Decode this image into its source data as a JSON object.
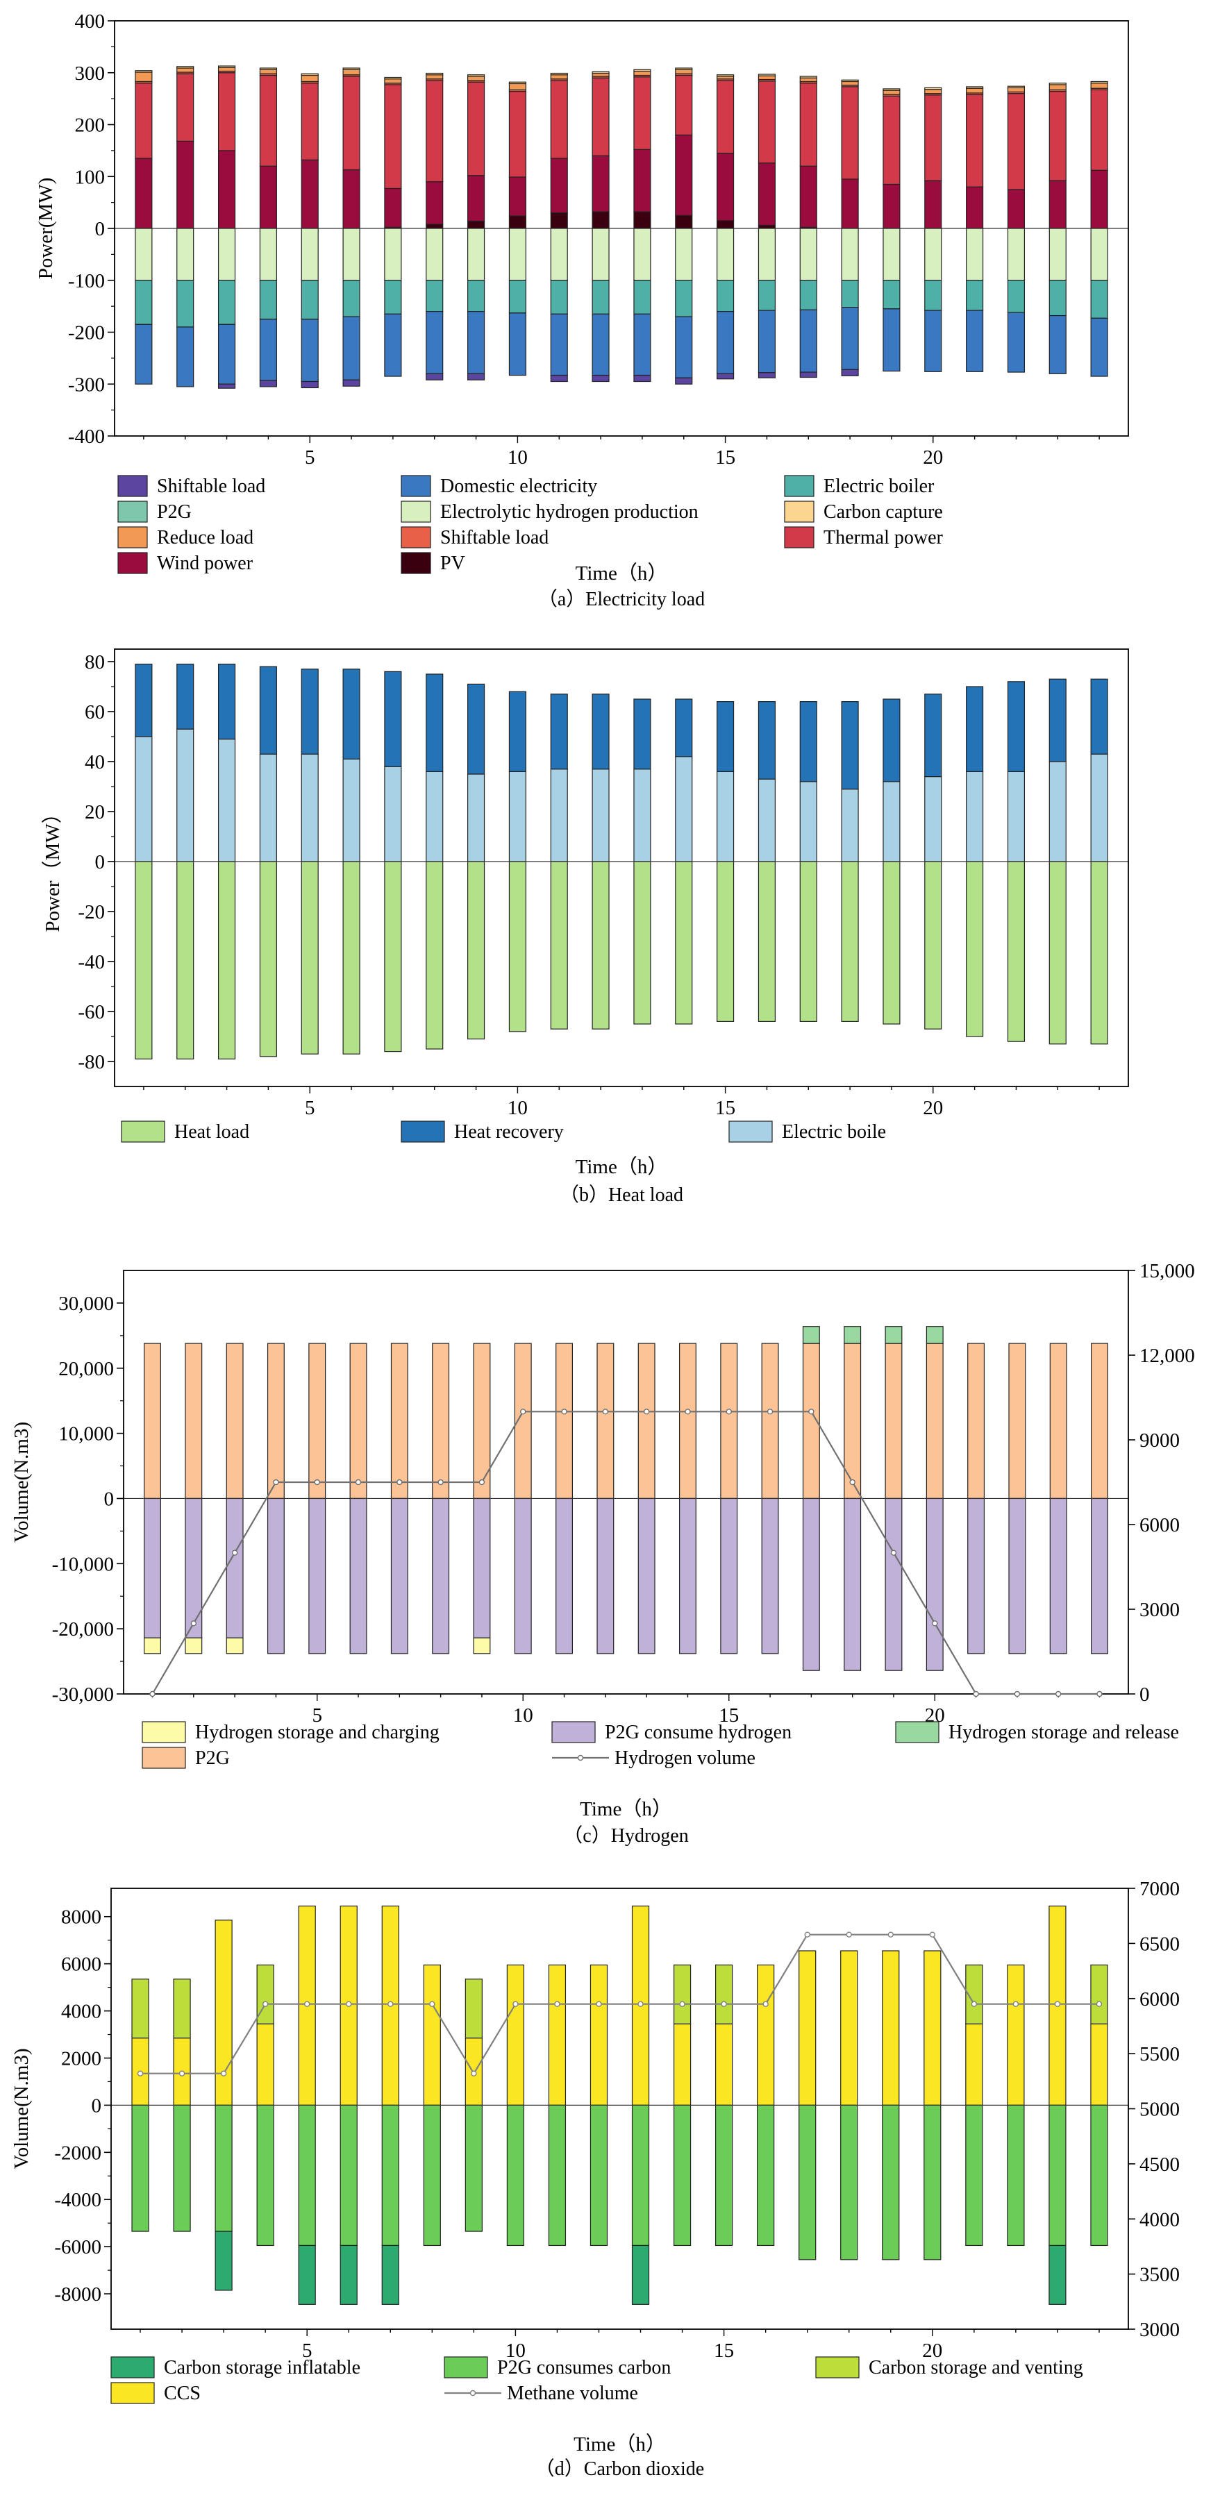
{
  "colors": {
    "shiftable_load": "#5b45a0",
    "domestic": "#3a78c2",
    "electric_boiler": "#4fb0a8",
    "p2g": "#7fc7ac",
    "electrolytic": "#d8efc0",
    "carbon_capture": "#fcd590",
    "reduce_load": "#f29a55",
    "shiftable_load_gen": "#e86048",
    "thermal": "#d23a4a",
    "wind": "#9a0b3e",
    "pv": "#3a0010",
    "heat_load": "#b3e18a",
    "heat_recovery": "#2373b6",
    "electric_boile": "#a9d1e6",
    "h2_charging": "#fdfba8",
    "h2_p2g": "#fcc397",
    "p2g_consume_h2": "#c0b1d8",
    "h2_release": "#9ad8a2",
    "h2_volume": "#707070",
    "carbon_inflatable": "#2daa70",
    "p2g_consumes_carbon": "#6ccc58",
    "carbon_venting": "#bddd3a",
    "ccs": "#fbe624",
    "methane": "#808080"
  },
  "chart_data": [
    {
      "id": "a",
      "type": "bar",
      "stacked": true,
      "caption": "（a）Electricity load",
      "xlabel": "Time（h）",
      "ylabel": "Power(MW)",
      "xlim": [
        0.3,
        24.7
      ],
      "ylim": [
        -400,
        400
      ],
      "yticks": [
        -400,
        -300,
        -200,
        -100,
        0,
        100,
        200,
        300,
        400
      ],
      "xticks": [
        5,
        10,
        15,
        20
      ],
      "legend_position": "bottom",
      "legend": [
        {
          "name": "Shiftable load",
          "color_key": "shiftable_load"
        },
        {
          "name": "Domestic electricity",
          "color_key": "domestic"
        },
        {
          "name": "Electric boiler",
          "color_key": "electric_boiler"
        },
        {
          "name": "P2G",
          "color_key": "p2g"
        },
        {
          "name": "Electrolytic hydrogen production",
          "color_key": "electrolytic"
        },
        {
          "name": "Carbon capture",
          "color_key": "carbon_capture"
        },
        {
          "name": "Reduce load",
          "color_key": "reduce_load"
        },
        {
          "name": "Shiftable load",
          "color_key": "shiftable_load_gen"
        },
        {
          "name": "Thermal power",
          "color_key": "thermal"
        },
        {
          "name": "Wind power",
          "color_key": "wind"
        },
        {
          "name": "PV",
          "color_key": "pv"
        }
      ],
      "x": [
        1,
        2,
        3,
        4,
        5,
        6,
        7,
        8,
        9,
        10,
        11,
        12,
        13,
        14,
        15,
        16,
        17,
        18,
        19,
        20,
        21,
        22,
        23,
        24
      ],
      "positive_series": [
        {
          "name": "PV",
          "color_key": "pv",
          "values": [
            0,
            0,
            0,
            0,
            0,
            0,
            2,
            8,
            14,
            24,
            30,
            32,
            32,
            25,
            15,
            6,
            2,
            0,
            0,
            0,
            0,
            0,
            0,
            0
          ]
        },
        {
          "name": "Wind power",
          "color_key": "wind",
          "values": [
            135,
            168,
            150,
            120,
            132,
            113,
            75,
            82,
            88,
            75,
            105,
            108,
            120,
            155,
            130,
            120,
            118,
            95,
            85,
            92,
            80,
            75,
            92,
            112
          ]
        },
        {
          "name": "Thermal power",
          "color_key": "thermal",
          "values": [
            145,
            130,
            150,
            175,
            148,
            180,
            200,
            195,
            180,
            165,
            150,
            150,
            140,
            115,
            140,
            158,
            160,
            178,
            170,
            165,
            178,
            185,
            172,
            155
          ]
        },
        {
          "name": "Shiftable load",
          "color_key": "shiftable_load_gen",
          "values": [
            3,
            3,
            3,
            3,
            3,
            3,
            3,
            3,
            3,
            3,
            3,
            3,
            3,
            3,
            3,
            3,
            3,
            3,
            3,
            3,
            3,
            3,
            3,
            3
          ]
        },
        {
          "name": "Reduce load",
          "color_key": "reduce_load",
          "values": [
            18,
            8,
            7,
            8,
            12,
            10,
            8,
            8,
            8,
            12,
            8,
            6,
            8,
            8,
            5,
            7,
            7,
            7,
            8,
            8,
            9,
            8,
            10,
            10
          ]
        },
        {
          "name": "Carbon capture",
          "color_key": "carbon_capture",
          "values": [
            3,
            3,
            3,
            3,
            3,
            3,
            3,
            3,
            3,
            3,
            3,
            3,
            3,
            3,
            3,
            3,
            3,
            3,
            3,
            3,
            3,
            3,
            3,
            3
          ]
        }
      ],
      "negative_series": [
        {
          "name": "Electrolytic hydrogen production",
          "color_key": "electrolytic",
          "values": [
            -100,
            -100,
            -100,
            -100,
            -100,
            -100,
            -100,
            -100,
            -100,
            -100,
            -100,
            -100,
            -100,
            -100,
            -100,
            -100,
            -100,
            -100,
            -100,
            -100,
            -100,
            -100,
            -100,
            -100
          ]
        },
        {
          "name": "Electric boiler",
          "color_key": "electric_boiler",
          "values": [
            -85,
            -90,
            -85,
            -75,
            -75,
            -70,
            -65,
            -60,
            -60,
            -63,
            -65,
            -65,
            -65,
            -70,
            -60,
            -58,
            -57,
            -52,
            -55,
            -58,
            -58,
            -62,
            -68,
            -73
          ]
        },
        {
          "name": "Domestic electricity",
          "color_key": "domestic",
          "values": [
            -115,
            -115,
            -115,
            -118,
            -120,
            -122,
            -120,
            -120,
            -120,
            -120,
            -118,
            -118,
            -118,
            -118,
            -120,
            -120,
            -120,
            -120,
            -120,
            -118,
            -118,
            -115,
            -112,
            -112
          ]
        },
        {
          "name": "Shiftable load",
          "color_key": "shiftable_load",
          "values": [
            0,
            0,
            -8,
            -12,
            -12,
            -12,
            0,
            -12,
            -12,
            0,
            -12,
            -12,
            -12,
            -12,
            -10,
            -10,
            -10,
            -12,
            0,
            0,
            0,
            0,
            0,
            0
          ]
        }
      ]
    },
    {
      "id": "b",
      "type": "bar",
      "stacked": true,
      "caption": "（b）Heat load",
      "xlabel": "Time（h）",
      "ylabel": "Power（MW）",
      "xlim": [
        0.3,
        24.7
      ],
      "ylim": [
        -90,
        85
      ],
      "yticks": [
        -80,
        -60,
        -40,
        -20,
        0,
        20,
        40,
        60,
        80
      ],
      "xticks": [
        5,
        10,
        15,
        20
      ],
      "legend_position": "bottom",
      "legend": [
        {
          "name": "Heat load",
          "color_key": "heat_load"
        },
        {
          "name": "Heat recovery",
          "color_key": "heat_recovery"
        },
        {
          "name": "Electric boile",
          "color_key": "electric_boile"
        }
      ],
      "x": [
        1,
        2,
        3,
        4,
        5,
        6,
        7,
        8,
        9,
        10,
        11,
        12,
        13,
        14,
        15,
        16,
        17,
        18,
        19,
        20,
        21,
        22,
        23,
        24
      ],
      "positive_series": [
        {
          "name": "Electric boile",
          "color_key": "electric_boile",
          "values": [
            50,
            53,
            49,
            43,
            43,
            41,
            38,
            36,
            35,
            36,
            37,
            37,
            37,
            42,
            36,
            33,
            32,
            29,
            32,
            34,
            36,
            36,
            40,
            43
          ]
        },
        {
          "name": "Heat recovery",
          "color_key": "heat_recovery",
          "values": [
            29,
            26,
            30,
            35,
            34,
            36,
            38,
            39,
            36,
            32,
            30,
            30,
            28,
            23,
            28,
            31,
            32,
            35,
            33,
            33,
            34,
            36,
            33,
            30
          ]
        }
      ],
      "negative_series": [
        {
          "name": "Heat load",
          "color_key": "heat_load",
          "values": [
            -79,
            -79,
            -79,
            -78,
            -77,
            -77,
            -76,
            -75,
            -71,
            -68,
            -67,
            -67,
            -65,
            -65,
            -64,
            -64,
            -64,
            -64,
            -65,
            -67,
            -70,
            -72,
            -73,
            -73
          ]
        }
      ]
    },
    {
      "id": "c",
      "type": "bar",
      "stacked": true,
      "caption": "（c）Hydrogen",
      "xlabel": "Time（h）",
      "ylabel": "Volume(N.m3)",
      "xlim": [
        0.3,
        24.7
      ],
      "ylim": [
        -30000,
        35000
      ],
      "yticks": [
        -30000,
        -20000,
        -10000,
        0,
        10000,
        20000,
        30000
      ],
      "ytick_labels": [
        "-30,000",
        "-20,000",
        "-10,000",
        "0",
        "10,000",
        "20,000",
        "30,000"
      ],
      "y2lim": [
        0,
        15000
      ],
      "y2ticks": [
        0,
        3000,
        6000,
        9000,
        12000,
        15000
      ],
      "y2tick_labels": [
        "0",
        "3000",
        "6000",
        "9000",
        "12,000",
        "15,000"
      ],
      "xticks": [
        5,
        10,
        15,
        20
      ],
      "legend_position": "bottom",
      "legend": [
        {
          "name": "Hydrogen storage and charging",
          "color_key": "h2_charging"
        },
        {
          "name": "P2G consume hydrogen",
          "color_key": "p2g_consume_h2"
        },
        {
          "name": "Hydrogen storage and release",
          "color_key": "h2_release"
        },
        {
          "name": "P2G",
          "color_key": "h2_p2g"
        },
        {
          "name": "Hydrogen volume",
          "color_key": "h2_volume",
          "line": true
        }
      ],
      "x": [
        1,
        2,
        3,
        4,
        5,
        6,
        7,
        8,
        9,
        10,
        11,
        12,
        13,
        14,
        15,
        16,
        17,
        18,
        19,
        20,
        21,
        22,
        23,
        24
      ],
      "positive_series": [
        {
          "name": "P2G",
          "color_key": "h2_p2g",
          "values": [
            23800,
            23800,
            23800,
            23800,
            23800,
            23800,
            23800,
            23800,
            23800,
            23800,
            23800,
            23800,
            23800,
            23800,
            23800,
            23800,
            23800,
            23800,
            23800,
            23800,
            23800,
            23800,
            23800,
            23800
          ]
        },
        {
          "name": "Hydrogen storage and release",
          "color_key": "h2_release",
          "values": [
            0,
            0,
            0,
            0,
            0,
            0,
            0,
            0,
            0,
            0,
            0,
            0,
            0,
            0,
            0,
            0,
            2600,
            2600,
            2600,
            2600,
            0,
            0,
            0,
            0
          ]
        }
      ],
      "negative_series": [
        {
          "name": "P2G consume hydrogen",
          "color_key": "p2g_consume_h2",
          "values": [
            -21400,
            -21400,
            -21400,
            -23800,
            -23800,
            -23800,
            -23800,
            -23800,
            -21400,
            -23800,
            -23800,
            -23800,
            -23800,
            -23800,
            -23800,
            -23800,
            -26400,
            -26400,
            -26400,
            -26400,
            -23800,
            -23800,
            -23800,
            -23800
          ]
        },
        {
          "name": "Hydrogen storage and charging",
          "color_key": "h2_charging",
          "values": [
            -2400,
            -2400,
            -2400,
            0,
            0,
            0,
            0,
            0,
            -2400,
            0,
            0,
            0,
            0,
            0,
            0,
            0,
            0,
            0,
            0,
            0,
            0,
            0,
            0,
            0
          ]
        }
      ],
      "line_series": {
        "name": "Hydrogen volume",
        "axis": "y2",
        "color_key": "h2_volume",
        "values": [
          0,
          2500,
          5000,
          7500,
          7500,
          7500,
          7500,
          7500,
          7500,
          10000,
          10000,
          10000,
          10000,
          10000,
          10000,
          10000,
          10000,
          7500,
          5000,
          2500,
          0,
          0,
          0,
          0
        ]
      }
    },
    {
      "id": "d",
      "type": "bar",
      "stacked": true,
      "caption": "（d）Carbon dioxide",
      "xlabel": "Time（h）",
      "ylabel": "Volume(N.m3)",
      "xlim": [
        0.3,
        24.7
      ],
      "ylim": [
        -9500,
        9200
      ],
      "yticks": [
        -8000,
        -6000,
        -4000,
        -2000,
        0,
        2000,
        4000,
        6000,
        8000
      ],
      "y2lim": [
        3000,
        7000
      ],
      "y2ticks": [
        3000,
        3500,
        4000,
        4500,
        5000,
        5500,
        6000,
        6500,
        7000
      ],
      "xticks": [
        5,
        10,
        15,
        20
      ],
      "legend_position": "bottom",
      "legend": [
        {
          "name": "Carbon storage inflatable",
          "color_key": "carbon_inflatable"
        },
        {
          "name": "P2G consumes carbon",
          "color_key": "p2g_consumes_carbon"
        },
        {
          "name": "Carbon storage and venting",
          "color_key": "carbon_venting"
        },
        {
          "name": "CCS",
          "color_key": "ccs"
        },
        {
          "name": "Methane volume",
          "color_key": "methane",
          "line": true
        }
      ],
      "x": [
        1,
        2,
        3,
        4,
        5,
        6,
        7,
        8,
        9,
        10,
        11,
        12,
        13,
        14,
        15,
        16,
        17,
        18,
        19,
        20,
        21,
        22,
        23,
        24
      ],
      "positive_series": [
        {
          "name": "CCS",
          "color_key": "ccs",
          "values": [
            2850,
            2850,
            7850,
            3450,
            8450,
            8450,
            8450,
            5950,
            2850,
            5950,
            5950,
            5950,
            8450,
            3450,
            3450,
            5950,
            6550,
            6550,
            6550,
            6550,
            3450,
            5950,
            8450,
            3450
          ]
        },
        {
          "name": "Carbon storage and venting",
          "color_key": "carbon_venting",
          "values": [
            2500,
            2500,
            0,
            2500,
            0,
            0,
            0,
            0,
            2500,
            0,
            0,
            0,
            0,
            2500,
            2500,
            0,
            0,
            0,
            0,
            0,
            2500,
            0,
            0,
            2500
          ]
        }
      ],
      "negative_series": [
        {
          "name": "P2G consumes carbon",
          "color_key": "p2g_consumes_carbon",
          "values": [
            -5350,
            -5350,
            -5350,
            -5950,
            -5950,
            -5950,
            -5950,
            -5950,
            -5350,
            -5950,
            -5950,
            -5950,
            -5950,
            -5950,
            -5950,
            -5950,
            -6550,
            -6550,
            -6550,
            -6550,
            -5950,
            -5950,
            -5950,
            -5950
          ]
        },
        {
          "name": "Carbon storage inflatable",
          "color_key": "carbon_inflatable",
          "values": [
            0,
            0,
            -2500,
            0,
            -2500,
            -2500,
            -2500,
            0,
            0,
            0,
            0,
            0,
            -2500,
            0,
            0,
            0,
            0,
            0,
            0,
            0,
            0,
            0,
            -2500,
            0
          ]
        }
      ],
      "line_series": {
        "name": "Methane volume",
        "axis": "y2",
        "color_key": "methane",
        "values": [
          5320,
          5320,
          5320,
          5950,
          5950,
          5950,
          5950,
          5950,
          5320,
          5950,
          5950,
          5950,
          5950,
          5950,
          5950,
          5950,
          6580,
          6580,
          6580,
          6580,
          5950,
          5950,
          5950,
          5950
        ]
      }
    }
  ]
}
